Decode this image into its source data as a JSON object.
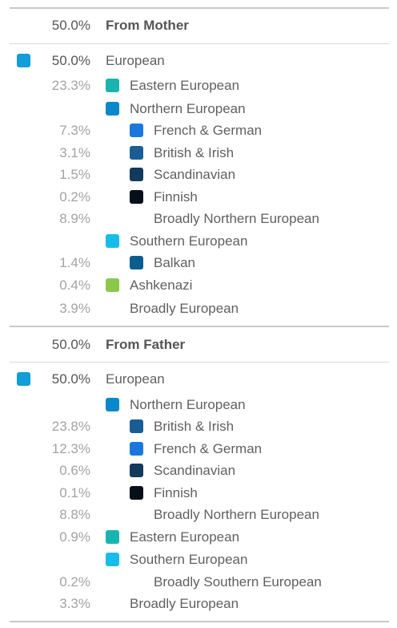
{
  "mother": {
    "header_pct": "50.0%",
    "header_label": "From Mother",
    "items": [
      {
        "pct": "50.0%",
        "label": "European",
        "color": "#119ed9"
      },
      {
        "pct": "23.3%",
        "label": "Eastern European",
        "color": "#19b4b0"
      },
      {
        "pct": "",
        "label": "Northern European",
        "color": "#0a88cb"
      },
      {
        "pct": "7.3%",
        "label": "French & German",
        "color": "#1a78dc"
      },
      {
        "pct": "3.1%",
        "label": "British & Irish",
        "color": "#1a5d95"
      },
      {
        "pct": "1.5%",
        "label": "Scandinavian",
        "color": "#113a5c"
      },
      {
        "pct": "0.2%",
        "label": "Finnish",
        "color": "#06101a"
      },
      {
        "pct": "8.9%",
        "label": "Broadly Northern European",
        "color": ""
      },
      {
        "pct": "",
        "label": "Southern European",
        "color": "#17bdea"
      },
      {
        "pct": "1.4%",
        "label": "Balkan",
        "color": "#0b5d8e"
      },
      {
        "pct": "0.4%",
        "label": "Ashkenazi",
        "color": "#8bc84a"
      },
      {
        "pct": "3.9%",
        "label": "Broadly European",
        "color": ""
      }
    ]
  },
  "father": {
    "header_pct": "50.0%",
    "header_label": "From Father",
    "items": [
      {
        "pct": "50.0%",
        "label": "European",
        "color": "#119ed9"
      },
      {
        "pct": "",
        "label": "Northern European",
        "color": "#0a88cb"
      },
      {
        "pct": "23.8%",
        "label": "British & Irish",
        "color": "#1a5d95"
      },
      {
        "pct": "12.3%",
        "label": "French & German",
        "color": "#1a78dc"
      },
      {
        "pct": "0.6%",
        "label": "Scandinavian",
        "color": "#113a5c"
      },
      {
        "pct": "0.1%",
        "label": "Finnish",
        "color": "#06101a"
      },
      {
        "pct": "8.8%",
        "label": "Broadly Northern European",
        "color": ""
      },
      {
        "pct": "0.9%",
        "label": "Eastern European",
        "color": "#19b4b0"
      },
      {
        "pct": "",
        "label": "Southern European",
        "color": "#17bdea"
      },
      {
        "pct": "0.2%",
        "label": "Broadly Southern European",
        "color": ""
      },
      {
        "pct": "3.3%",
        "label": "Broadly European",
        "color": ""
      }
    ]
  }
}
